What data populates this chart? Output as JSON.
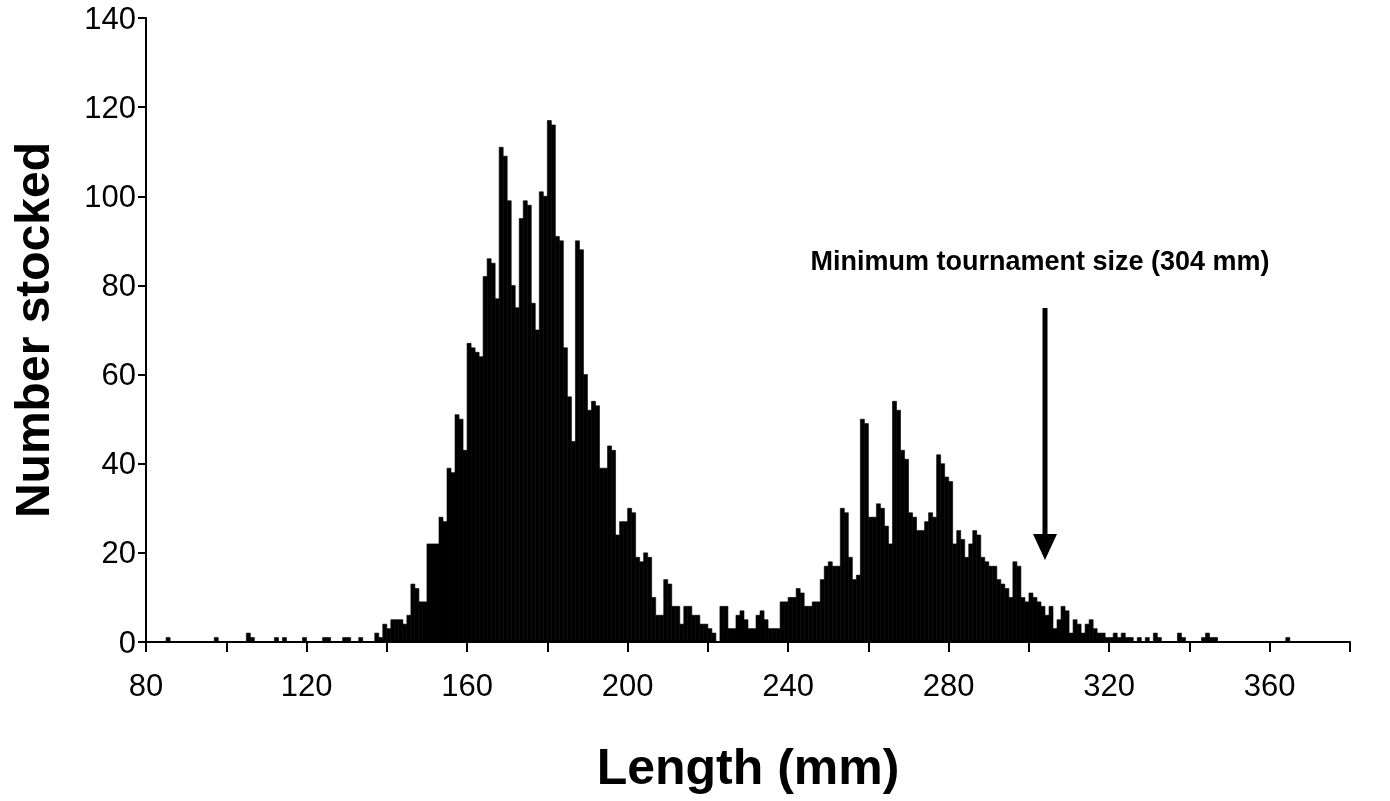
{
  "chart_data": {
    "type": "histogram",
    "xlabel": "Length (mm)",
    "ylabel": "Number stocked",
    "color": "#000000",
    "bins": [
      80,
      81,
      82,
      83,
      84,
      85,
      86,
      87,
      88,
      89,
      90,
      91,
      92,
      93,
      94,
      95,
      96,
      97,
      98,
      99,
      100,
      101,
      102,
      103,
      104,
      105,
      106,
      107,
      108,
      109,
      110,
      111,
      112,
      113,
      114,
      115,
      116,
      117,
      118,
      119,
      120,
      121,
      122,
      123,
      124,
      125,
      126,
      127,
      128,
      129,
      130,
      131,
      132,
      133,
      134,
      135,
      136,
      137,
      138,
      139,
      140,
      141,
      142,
      143,
      144,
      145,
      146,
      147,
      148,
      149,
      150,
      151,
      152,
      153,
      154,
      155,
      156,
      157,
      158,
      159,
      160,
      161,
      162,
      163,
      164,
      165,
      166,
      167,
      168,
      169,
      170,
      171,
      172,
      173,
      174,
      175,
      176,
      177,
      178,
      179,
      180,
      181,
      182,
      183,
      184,
      185,
      186,
      187,
      188,
      189,
      190,
      191,
      192,
      193,
      194,
      195,
      196,
      197,
      198,
      199,
      200,
      201,
      202,
      203,
      204,
      205,
      206,
      207,
      208,
      209,
      210,
      211,
      212,
      213,
      214,
      215,
      216,
      217,
      218,
      219,
      220,
      221,
      222,
      223,
      224,
      225,
      226,
      227,
      228,
      229,
      230,
      231,
      232,
      233,
      234,
      235,
      236,
      237,
      238,
      239,
      240,
      241,
      242,
      243,
      244,
      245,
      246,
      247,
      248,
      249,
      250,
      251,
      252,
      253,
      254,
      255,
      256,
      257,
      258,
      259,
      260,
      261,
      262,
      263,
      264,
      265,
      266,
      267,
      268,
      269,
      270,
      271,
      272,
      273,
      274,
      275,
      276,
      277,
      278,
      279,
      280,
      281,
      282,
      283,
      284,
      285,
      286,
      287,
      288,
      289,
      290,
      291,
      292,
      293,
      294,
      295,
      296,
      297,
      298,
      299,
      300,
      301,
      302,
      303,
      304,
      305,
      306,
      307,
      308,
      309,
      310,
      311,
      312,
      313,
      314,
      315,
      316,
      317,
      318,
      319,
      320,
      321,
      322,
      323,
      324,
      325,
      326,
      327,
      328,
      329,
      330,
      331,
      332,
      333,
      334,
      335,
      336,
      337,
      338,
      339,
      340,
      341,
      342,
      343,
      344,
      345,
      346,
      347,
      348,
      349,
      350,
      351,
      352,
      353,
      354,
      355,
      356,
      357,
      358,
      359,
      360,
      361,
      362,
      363,
      364,
      365,
      366,
      367,
      368,
      369,
      370,
      371,
      372,
      373,
      374,
      375,
      376,
      377,
      378,
      379,
      380
    ],
    "values": [
      0,
      0,
      0,
      0,
      0,
      1,
      0,
      0,
      0,
      0,
      0,
      0,
      0,
      0,
      0,
      0,
      0,
      1,
      0,
      0,
      0,
      0,
      0,
      0,
      0,
      2,
      1,
      0,
      0,
      0,
      0,
      0,
      1,
      0,
      1,
      0,
      0,
      0,
      0,
      1,
      0,
      0,
      0,
      0,
      1,
      1,
      0,
      0,
      0,
      1,
      1,
      0,
      0,
      1,
      0,
      0,
      0,
      2,
      1,
      4,
      3,
      5,
      5,
      5,
      4,
      6,
      13,
      12,
      9,
      9,
      22,
      22,
      22,
      28,
      27,
      39,
      38,
      51,
      50,
      43,
      67,
      66,
      65,
      64,
      82,
      86,
      85,
      77,
      111,
      109,
      99,
      80,
      75,
      95,
      99,
      98,
      76,
      70,
      101,
      100,
      117,
      116,
      91,
      90,
      66,
      55,
      45,
      90,
      88,
      60,
      52,
      54,
      53,
      39,
      39,
      44,
      43,
      24,
      27,
      27,
      30,
      29,
      19,
      18,
      20,
      19,
      10,
      6,
      6,
      14,
      13,
      8,
      8,
      4,
      8,
      8,
      6,
      6,
      4,
      4,
      3,
      2,
      0,
      8,
      8,
      3,
      3,
      6,
      7,
      5,
      3,
      3,
      6,
      7,
      5,
      3,
      3,
      3,
      9,
      9,
      10,
      10,
      12,
      11,
      8,
      8,
      9,
      9,
      14,
      17,
      18,
      17,
      17,
      30,
      29,
      19,
      14,
      15,
      50,
      49,
      28,
      28,
      31,
      30,
      26,
      22,
      54,
      52,
      43,
      41,
      29,
      28,
      25,
      25,
      27,
      29,
      28,
      42,
      40,
      37,
      36,
      22,
      25,
      23,
      19,
      22,
      25,
      24,
      19,
      18,
      17,
      17,
      14,
      13,
      12,
      10,
      18,
      17,
      10,
      9,
      11,
      10,
      9,
      8,
      6,
      8,
      3,
      5,
      8,
      7,
      2,
      5,
      4,
      2,
      4,
      5,
      3,
      2,
      2,
      1,
      1,
      2,
      1,
      2,
      1,
      1,
      0,
      1,
      0,
      1,
      0,
      2,
      1,
      0,
      0,
      0,
      0,
      2,
      1,
      0,
      0,
      0,
      0,
      1,
      2,
      1,
      1,
      0,
      0,
      0,
      0,
      0,
      0,
      0,
      0,
      0,
      0,
      0,
      0,
      0,
      0,
      0,
      0,
      0,
      1,
      0,
      0,
      0,
      0,
      0,
      0,
      0,
      0,
      0,
      0,
      0,
      0,
      0,
      0,
      0
    ],
    "xlim": [
      80,
      380
    ],
    "xticks": [
      80,
      {
        "value": 100,
        "label": null
      },
      120,
      {
        "value": 140,
        "label": null
      },
      160,
      {
        "value": 180,
        "label": null
      },
      200,
      {
        "value": 220,
        "label": null
      },
      240,
      {
        "value": 260,
        "label": null
      },
      280,
      {
        "value": 300,
        "label": null
      },
      320,
      {
        "value": 340,
        "label": null
      },
      360,
      {
        "value": 380,
        "label": null
      }
    ],
    "ylim": [
      0,
      140
    ],
    "yticks": [
      0,
      20,
      40,
      60,
      80,
      100,
      120,
      140
    ],
    "annotations": [
      "Minimum tournament size (304 mm)"
    ]
  }
}
